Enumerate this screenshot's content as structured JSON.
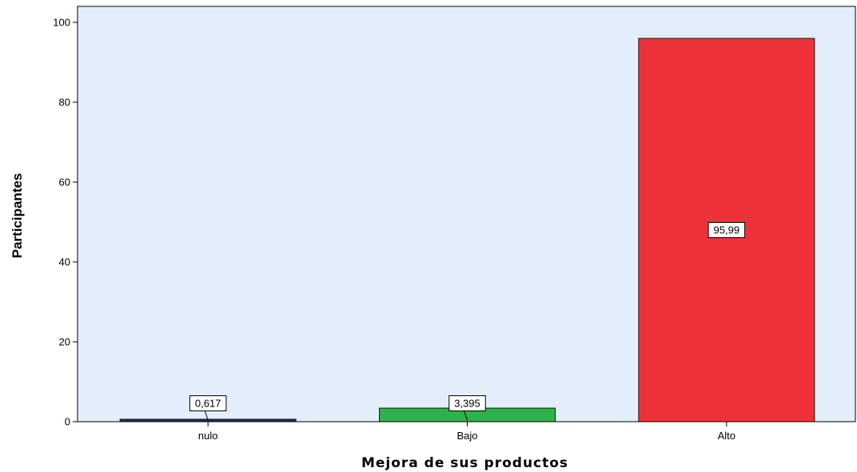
{
  "chart_data": {
    "type": "bar",
    "title": "",
    "xlabel": "Mejora de sus productos",
    "ylabel": "Participantes",
    "categories": [
      "nulo",
      "Bajo",
      "Alto"
    ],
    "values": [
      0.617,
      3.395,
      95.99
    ],
    "data_labels": [
      "0,617",
      "3,395",
      "95,99"
    ],
    "ylim": [
      0,
      104
    ],
    "yticks": [
      0,
      20,
      40,
      60,
      80,
      100
    ],
    "ytick_labels": [
      "0",
      "20",
      "40",
      "60",
      "80",
      "100"
    ],
    "bar_colors": [
      "#1f2a5c",
      "#2db34a",
      "#ef3239"
    ],
    "background_color": "#e3eefa",
    "grid": false,
    "legend": "none"
  }
}
